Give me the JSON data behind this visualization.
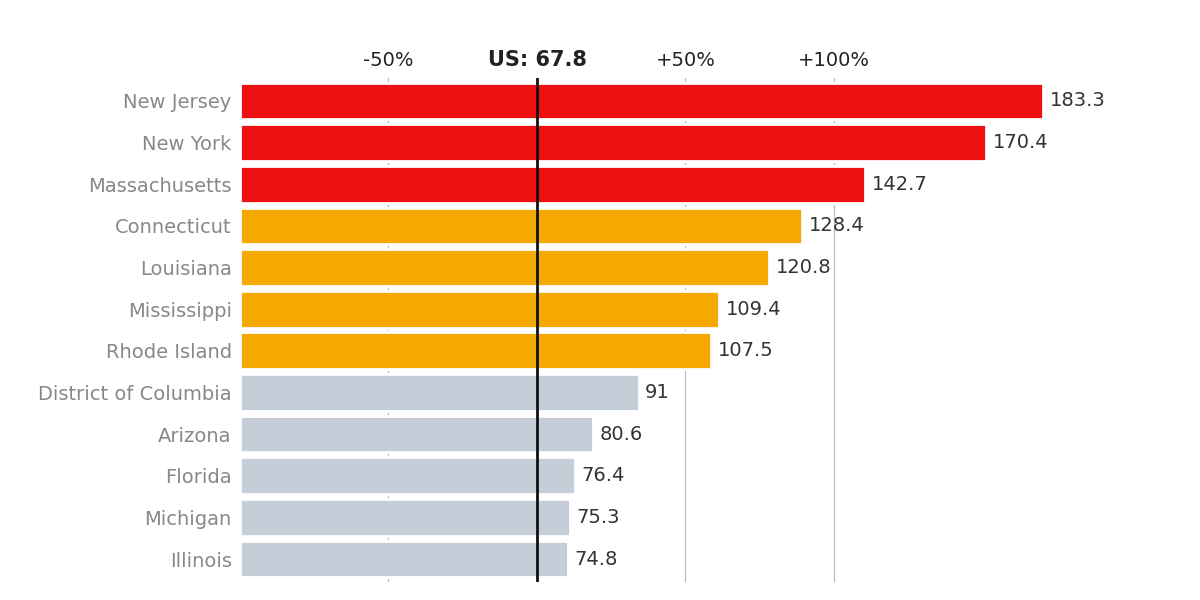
{
  "states": [
    "New Jersey",
    "New York",
    "Massachusetts",
    "Connecticut",
    "Louisiana",
    "Mississippi",
    "Rhode Island",
    "District of Columbia",
    "Arizona",
    "Florida",
    "Michigan",
    "Illinois"
  ],
  "values": [
    183.3,
    170.4,
    142.7,
    128.4,
    120.8,
    109.4,
    107.5,
    91.0,
    80.6,
    76.4,
    75.3,
    74.8
  ],
  "colors": [
    "#ee1010",
    "#ee1010",
    "#ee1010",
    "#f5a800",
    "#f5a800",
    "#f5a800",
    "#f5a800",
    "#c5cdd8",
    "#c5cdd8",
    "#c5cdd8",
    "#c5cdd8",
    "#c5cdd8"
  ],
  "us_avg": 67.8,
  "xmin": 0,
  "xmax": 200,
  "x_tick_positions": [
    33.9,
    67.8,
    101.7,
    135.6
  ],
  "x_tick_labels": [
    "-50%",
    "US: 67.8",
    "+50%",
    "+100%"
  ],
  "background_color": "#ffffff",
  "bar_height": 0.88,
  "value_label_fontsize": 14,
  "state_label_fontsize": 14
}
